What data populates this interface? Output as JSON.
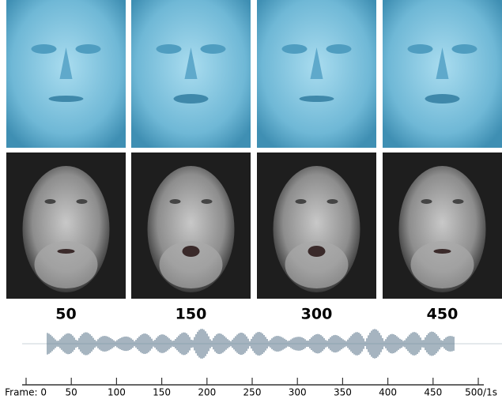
{
  "frames": [
    {
      "label": "50"
    },
    {
      "label": "150"
    },
    {
      "label": "300"
    },
    {
      "label": "450"
    }
  ],
  "timeline": {
    "xlim": [
      0,
      500
    ],
    "ticks": [
      {
        "value": 0,
        "label": "Frame: 0"
      },
      50,
      100,
      150,
      200,
      250,
      300,
      350,
      400,
      450,
      {
        "value": 500,
        "label": "500/1s"
      }
    ]
  }
}
